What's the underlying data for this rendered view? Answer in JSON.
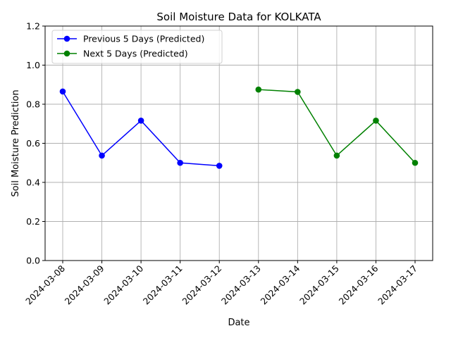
{
  "chart_data": {
    "type": "line",
    "title": "Soil Moisture Data for KOLKATA",
    "xlabel": "Date",
    "ylabel": "Soil Moisture Prediction",
    "ylim": [
      0,
      1.2
    ],
    "yticks": [
      "0.0",
      "0.2",
      "0.4",
      "0.6",
      "0.8",
      "1.0",
      "1.2"
    ],
    "categories": [
      "2024-03-08",
      "2024-03-09",
      "2024-03-10",
      "2024-03-11",
      "2024-03-12",
      "2024-03-13",
      "2024-03-14",
      "2024-03-15",
      "2024-03-16",
      "2024-03-17"
    ],
    "grid": true,
    "legend_position": "top-left",
    "series": [
      {
        "name": "Previous 5 Days (Predicted)",
        "color": "#0000ff",
        "marker": "circle",
        "x": [
          "2024-03-08",
          "2024-03-09",
          "2024-03-10",
          "2024-03-11",
          "2024-03-12"
        ],
        "values": [
          0.865,
          0.537,
          0.716,
          0.5,
          0.485
        ]
      },
      {
        "name": "Next 5 Days (Predicted)",
        "color": "#008000",
        "marker": "circle",
        "x": [
          "2024-03-13",
          "2024-03-14",
          "2024-03-15",
          "2024-03-16",
          "2024-03-17"
        ],
        "values": [
          0.875,
          0.863,
          0.537,
          0.716,
          0.5
        ]
      }
    ]
  }
}
